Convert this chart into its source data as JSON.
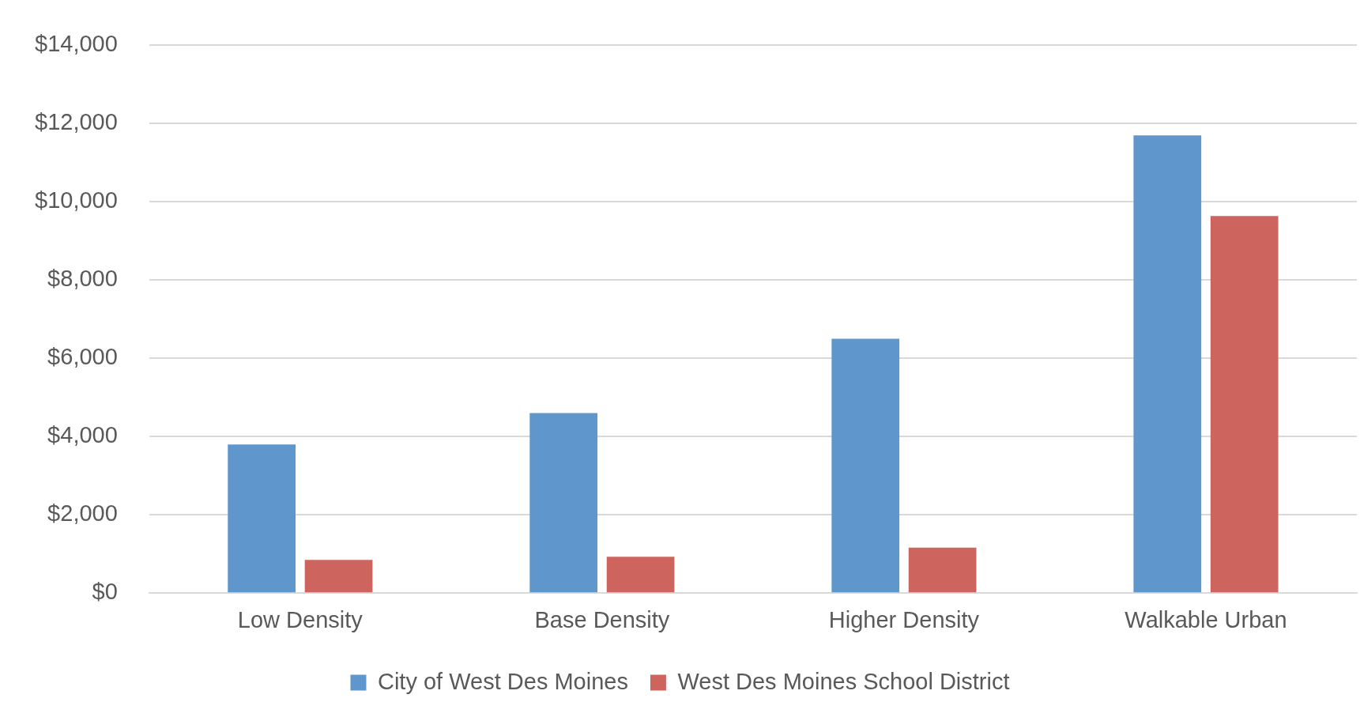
{
  "chart_data": {
    "type": "bar",
    "categories": [
      "Low Density",
      "Base Density",
      "Higher Density",
      "Walkable Urban"
    ],
    "series": [
      {
        "name": "City of West Des Moines",
        "color": "#5f96cb",
        "values": [
          3800,
          4600,
          6500,
          11700
        ]
      },
      {
        "name": "West Des Moines School District",
        "color": "#cd655e",
        "values": [
          850,
          930,
          1160,
          9640
        ]
      }
    ],
    "ylim": [
      0,
      14000
    ],
    "yticks": [
      {
        "value": 0,
        "label": "$0"
      },
      {
        "value": 2000,
        "label": "$2,000"
      },
      {
        "value": 4000,
        "label": "$4,000"
      },
      {
        "value": 6000,
        "label": "$6,000"
      },
      {
        "value": 8000,
        "label": "$8,000"
      },
      {
        "value": 10000,
        "label": "$10,000"
      },
      {
        "value": 12000,
        "label": "$12,000"
      },
      {
        "value": 14000,
        "label": "$14,000"
      }
    ],
    "grid": "y",
    "legend": "bottom"
  }
}
